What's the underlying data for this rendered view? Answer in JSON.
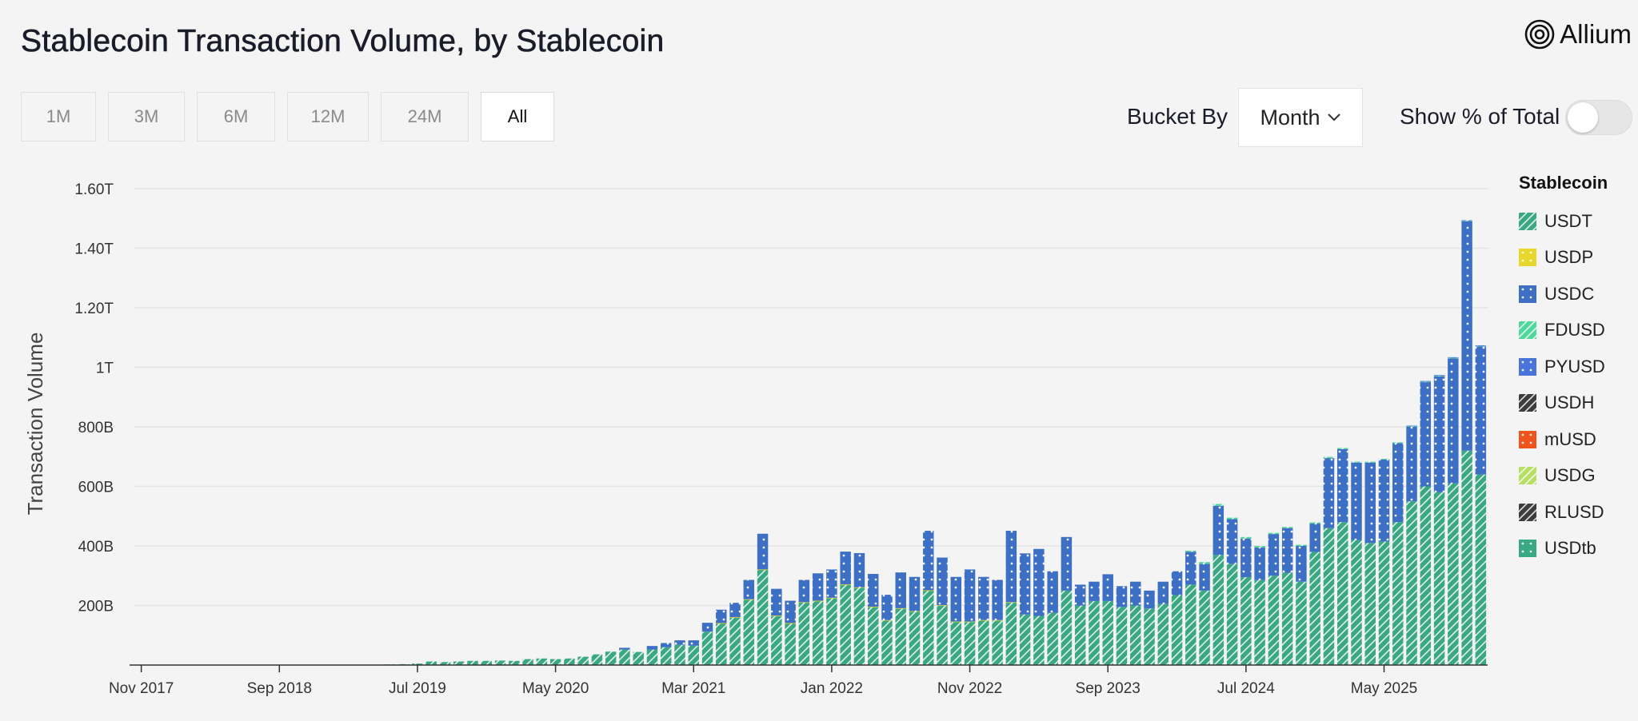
{
  "header": {
    "title": "Stablecoin Transaction Volume, by Stablecoin",
    "brand": "Allium"
  },
  "controls": {
    "ranges": [
      {
        "label": "1M",
        "active": false
      },
      {
        "label": "3M",
        "active": false
      },
      {
        "label": "6M",
        "active": false
      },
      {
        "label": "12M",
        "active": false
      },
      {
        "label": "24M",
        "active": false
      },
      {
        "label": "All",
        "active": true
      }
    ],
    "bucket_label": "Bucket By",
    "bucket_value": "Month",
    "show_pct_label": "Show % of Total",
    "show_pct_on": false
  },
  "legend": {
    "title": "Stablecoin",
    "items": [
      {
        "name": "USDT",
        "color": "#3aa882",
        "pattern": "diag"
      },
      {
        "name": "USDP",
        "color": "#e6d72a",
        "pattern": "dots"
      },
      {
        "name": "USDC",
        "color": "#3d6fc4",
        "pattern": "dots"
      },
      {
        "name": "FDUSD",
        "color": "#4fd89c",
        "pattern": "diag"
      },
      {
        "name": "PYUSD",
        "color": "#4a74dc",
        "pattern": "dots"
      },
      {
        "name": "USDH",
        "color": "#3d3d3d",
        "pattern": "diag"
      },
      {
        "name": "mUSD",
        "color": "#f0541c",
        "pattern": "dots"
      },
      {
        "name": "USDG",
        "color": "#b6e065",
        "pattern": "diag"
      },
      {
        "name": "RLUSD",
        "color": "#3d3d3d",
        "pattern": "diag"
      },
      {
        "name": "USDtb",
        "color": "#3aa882",
        "pattern": "dots"
      }
    ]
  },
  "chart_data": {
    "type": "bar",
    "stacked": true,
    "ylabel": "Transaction Volume",
    "y_unit": "B (billions USD)",
    "ylim": [
      0,
      1600
    ],
    "y_ticks": [
      200,
      400,
      600,
      800,
      1000,
      1200,
      1400,
      1600
    ],
    "y_tick_labels": [
      "200B",
      "400B",
      "600B",
      "800B",
      "1T",
      "1.20T",
      "1.40T",
      "1.60T"
    ],
    "x_tick_labels": [
      "Nov 2017",
      "Sep 2018",
      "Jul 2019",
      "May 2020",
      "Mar 2021",
      "Jan 2022",
      "Nov 2022",
      "Sep 2023",
      "Jul 2024",
      "May 2025"
    ],
    "grid": true,
    "legend_position": "right",
    "categories": [
      "Nov 2017",
      "Dec 2017",
      "Jan 2018",
      "Feb 2018",
      "Mar 2018",
      "Apr 2018",
      "May 2018",
      "Jun 2018",
      "Jul 2018",
      "Aug 2018",
      "Sep 2018",
      "Oct 2018",
      "Nov 2018",
      "Dec 2018",
      "Jan 2019",
      "Feb 2019",
      "Mar 2019",
      "Apr 2019",
      "May 2019",
      "Jun 2019",
      "Jul 2019",
      "Aug 2019",
      "Sep 2019",
      "Oct 2019",
      "Nov 2019",
      "Dec 2019",
      "Jan 2020",
      "Feb 2020",
      "Mar 2020",
      "Apr 2020",
      "May 2020",
      "Jun 2020",
      "Jul 2020",
      "Aug 2020",
      "Sep 2020",
      "Oct 2020",
      "Nov 2020",
      "Dec 2020",
      "Jan 2021",
      "Feb 2021",
      "Mar 2021",
      "Apr 2021",
      "May 2021",
      "Jun 2021",
      "Jul 2021",
      "Aug 2021",
      "Sep 2021",
      "Oct 2021",
      "Nov 2021",
      "Dec 2021",
      "Jan 2022",
      "Feb 2022",
      "Mar 2022",
      "Apr 2022",
      "May 2022",
      "Jun 2022",
      "Jul 2022",
      "Aug 2022",
      "Sep 2022",
      "Oct 2022",
      "Nov 2022",
      "Dec 2022",
      "Jan 2023",
      "Feb 2023",
      "Mar 2023",
      "Apr 2023",
      "May 2023",
      "Jun 2023",
      "Jul 2023",
      "Aug 2023",
      "Sep 2023",
      "Oct 2023",
      "Nov 2023",
      "Dec 2023",
      "Jan 2024",
      "Feb 2024",
      "Mar 2024",
      "Apr 2024",
      "May 2024",
      "Jun 2024",
      "Jul 2024",
      "Aug 2024",
      "Sep 2024",
      "Oct 2024",
      "Nov 2024",
      "Dec 2024",
      "Jan 2025",
      "Feb 2025",
      "Mar 2025",
      "Apr 2025",
      "May 2025",
      "Jun 2025",
      "Jul 2025",
      "Aug 2025",
      "Sep 2025",
      "Oct 2025",
      "Nov 2025",
      "Dec 2025"
    ],
    "series": [
      {
        "name": "USDT",
        "values": [
          0,
          0,
          0,
          0,
          0,
          0,
          0,
          0,
          0,
          0,
          0,
          0,
          0,
          0,
          0,
          0,
          0,
          0,
          2,
          3,
          5,
          12,
          10,
          12,
          14,
          14,
          15,
          14,
          20,
          22,
          20,
          22,
          28,
          36,
          45,
          52,
          44,
          52,
          60,
          68,
          65,
          112,
          140,
          160,
          220,
          320,
          165,
          140,
          210,
          215,
          225,
          270,
          260,
          195,
          150,
          190,
          180,
          250,
          200,
          145,
          145,
          150,
          150,
          210,
          170,
          165,
          175,
          250,
          200,
          215,
          215,
          195,
          200,
          190,
          205,
          235,
          270,
          250,
          370,
          340,
          295,
          285,
          300,
          310,
          280,
          380,
          460,
          480,
          420,
          410,
          415,
          480,
          550,
          600,
          580,
          610,
          720,
          640
        ]
      },
      {
        "name": "USDP",
        "values": [
          0,
          0,
          0,
          0,
          0,
          0,
          0,
          0,
          0,
          0,
          0,
          0,
          0,
          0,
          0,
          0,
          0,
          0,
          0,
          0,
          0,
          0,
          0,
          0,
          0,
          0,
          0,
          0,
          0,
          0,
          0,
          0,
          0,
          0,
          0,
          0,
          0,
          0,
          0,
          0,
          0,
          0,
          1,
          1,
          1,
          1,
          1,
          1,
          1,
          1,
          1,
          1,
          1,
          1,
          1,
          1,
          1,
          1,
          1,
          1,
          1,
          1,
          1,
          1,
          0,
          0,
          0,
          0,
          0,
          0,
          0,
          0,
          0,
          0,
          0,
          0,
          0,
          0,
          0,
          0,
          0,
          0,
          0,
          0,
          0,
          0,
          0,
          0,
          0,
          0,
          0,
          0,
          0,
          0,
          0,
          0,
          0,
          0
        ]
      },
      {
        "name": "USDC",
        "values": [
          0,
          0,
          0,
          0,
          0,
          0,
          0,
          0,
          0,
          0,
          0,
          0,
          0,
          0,
          0,
          0,
          0,
          0,
          0,
          0,
          0,
          0,
          0,
          0,
          0,
          0,
          0,
          0,
          0,
          0,
          0,
          0,
          0,
          0,
          0,
          6,
          0,
          12,
          14,
          15,
          18,
          30,
          45,
          48,
          65,
          120,
          90,
          75,
          75,
          92,
          95,
          110,
          115,
          110,
          85,
          120,
          115,
          200,
          160,
          150,
          175,
          145,
          135,
          240,
          205,
          225,
          140,
          180,
          70,
          65,
          90,
          70,
          80,
          60,
          75,
          80,
          110,
          90,
          165,
          150,
          130,
          110,
          140,
          150,
          120,
          95,
          235,
          245,
          260,
          270,
          275,
          265,
          250,
          350,
          390,
          420,
          770,
          430
        ]
      },
      {
        "name": "FDUSD",
        "values": [
          0,
          0,
          0,
          0,
          0,
          0,
          0,
          0,
          0,
          0,
          0,
          0,
          0,
          0,
          0,
          0,
          0,
          0,
          0,
          0,
          0,
          0,
          0,
          0,
          0,
          0,
          0,
          0,
          0,
          0,
          0,
          0,
          0,
          0,
          0,
          0,
          0,
          0,
          0,
          0,
          0,
          0,
          0,
          0,
          0,
          0,
          0,
          0,
          0,
          0,
          0,
          0,
          0,
          0,
          0,
          0,
          0,
          0,
          0,
          0,
          0,
          0,
          0,
          0,
          0,
          0,
          0,
          0,
          0,
          0,
          0,
          0,
          0,
          0,
          0,
          0,
          4,
          6,
          6,
          5,
          5,
          5,
          4,
          4,
          4,
          4,
          4,
          4,
          3,
          3,
          3,
          3,
          3,
          3,
          3,
          3,
          3,
          3
        ]
      },
      {
        "name": "PYUSD",
        "values": [
          0,
          0,
          0,
          0,
          0,
          0,
          0,
          0,
          0,
          0,
          0,
          0,
          0,
          0,
          0,
          0,
          0,
          0,
          0,
          0,
          0,
          0,
          0,
          0,
          0,
          0,
          0,
          0,
          0,
          0,
          0,
          0,
          0,
          0,
          0,
          0,
          0,
          0,
          0,
          0,
          0,
          0,
          0,
          0,
          0,
          0,
          0,
          0,
          0,
          0,
          0,
          0,
          0,
          0,
          0,
          0,
          0,
          0,
          0,
          0,
          0,
          0,
          0,
          0,
          0,
          0,
          0,
          0,
          0,
          0,
          0,
          0,
          0,
          0,
          0,
          0,
          0,
          0,
          0,
          0,
          0,
          0,
          0,
          0,
          0,
          0,
          0,
          0,
          0,
          0,
          0,
          0,
          1,
          1,
          1,
          1,
          1,
          1
        ]
      },
      {
        "name": "USDH",
        "values": [
          0,
          0,
          0,
          0,
          0,
          0,
          0,
          0,
          0,
          0,
          0,
          0,
          0,
          0,
          0,
          0,
          0,
          0,
          0,
          0,
          0,
          0,
          0,
          0,
          0,
          0,
          0,
          0,
          0,
          0,
          0,
          0,
          0,
          0,
          0,
          0,
          0,
          0,
          0,
          0,
          0,
          0,
          0,
          0,
          0,
          0,
          0,
          0,
          0,
          0,
          0,
          0,
          0,
          0,
          0,
          0,
          0,
          0,
          0,
          0,
          0,
          0,
          0,
          0,
          0,
          0,
          0,
          0,
          0,
          0,
          0,
          0,
          0,
          0,
          0,
          0,
          0,
          0,
          0,
          0,
          0,
          0,
          0,
          0,
          0,
          0,
          0,
          0,
          0,
          0,
          0,
          0,
          0,
          0,
          0,
          0,
          0,
          0
        ]
      },
      {
        "name": "mUSD",
        "values": [
          0,
          0,
          0,
          0,
          0,
          0,
          0,
          0,
          0,
          0,
          0,
          0,
          0,
          0,
          0,
          0,
          0,
          0,
          0,
          0,
          0,
          0,
          0,
          0,
          0,
          0,
          0,
          0,
          0,
          0,
          0,
          0,
          0,
          0,
          0,
          0,
          0,
          0,
          0,
          0,
          0,
          0,
          0,
          0,
          0,
          0,
          0,
          0,
          0,
          0,
          0,
          0,
          0,
          0,
          0,
          0,
          0,
          0,
          0,
          0,
          0,
          0,
          0,
          0,
          0,
          0,
          0,
          0,
          0,
          0,
          0,
          0,
          0,
          0,
          0,
          0,
          0,
          0,
          0,
          0,
          0,
          0,
          0,
          0,
          0,
          0,
          0,
          0,
          0,
          0,
          0,
          0,
          0,
          0,
          0,
          0,
          0,
          0
        ]
      },
      {
        "name": "USDG",
        "values": [
          0,
          0,
          0,
          0,
          0,
          0,
          0,
          0,
          0,
          0,
          0,
          0,
          0,
          0,
          0,
          0,
          0,
          0,
          0,
          0,
          0,
          0,
          0,
          0,
          0,
          0,
          0,
          0,
          0,
          0,
          0,
          0,
          0,
          0,
          0,
          0,
          0,
          0,
          0,
          0,
          0,
          0,
          0,
          0,
          0,
          0,
          0,
          0,
          0,
          0,
          0,
          0,
          0,
          0,
          0,
          0,
          0,
          0,
          0,
          0,
          0,
          0,
          0,
          0,
          0,
          0,
          0,
          0,
          0,
          0,
          0,
          0,
          0,
          0,
          0,
          0,
          0,
          0,
          0,
          0,
          0,
          0,
          0,
          0,
          0,
          0,
          0,
          0,
          0,
          0,
          0,
          0,
          0,
          0,
          0,
          0,
          0,
          0
        ]
      },
      {
        "name": "RLUSD",
        "values": [
          0,
          0,
          0,
          0,
          0,
          0,
          0,
          0,
          0,
          0,
          0,
          0,
          0,
          0,
          0,
          0,
          0,
          0,
          0,
          0,
          0,
          0,
          0,
          0,
          0,
          0,
          0,
          0,
          0,
          0,
          0,
          0,
          0,
          0,
          0,
          0,
          0,
          0,
          0,
          0,
          0,
          0,
          0,
          0,
          0,
          0,
          0,
          0,
          0,
          0,
          0,
          0,
          0,
          0,
          0,
          0,
          0,
          0,
          0,
          0,
          0,
          0,
          0,
          0,
          0,
          0,
          0,
          0,
          0,
          0,
          0,
          0,
          0,
          0,
          0,
          0,
          0,
          0,
          0,
          0,
          0,
          0,
          0,
          0,
          0,
          0,
          0,
          0,
          0,
          0,
          0,
          0,
          0,
          0,
          0,
          0,
          0,
          0
        ]
      },
      {
        "name": "USDtb",
        "values": [
          0,
          0,
          0,
          0,
          0,
          0,
          0,
          0,
          0,
          0,
          0,
          0,
          0,
          0,
          0,
          0,
          0,
          0,
          0,
          0,
          0,
          0,
          0,
          0,
          0,
          0,
          0,
          0,
          0,
          0,
          0,
          0,
          0,
          0,
          0,
          0,
          0,
          0,
          0,
          0,
          0,
          0,
          0,
          0,
          0,
          0,
          0,
          0,
          0,
          0,
          0,
          0,
          0,
          0,
          0,
          0,
          0,
          0,
          0,
          0,
          0,
          0,
          0,
          0,
          0,
          0,
          0,
          0,
          0,
          0,
          0,
          0,
          0,
          0,
          0,
          0,
          0,
          0,
          0,
          0,
          0,
          0,
          0,
          0,
          0,
          0,
          0,
          0,
          0,
          0,
          0,
          0,
          0,
          0,
          0,
          0,
          0,
          0
        ]
      }
    ]
  }
}
